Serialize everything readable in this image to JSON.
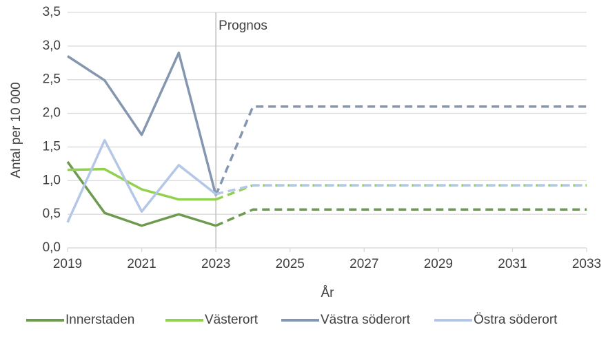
{
  "chart_data": {
    "type": "line",
    "y_label": "Antal per 10 000",
    "x_label": "År",
    "annotation": {
      "text": "Prognos",
      "x": 2023
    },
    "x": [
      2019,
      2020,
      2021,
      2022,
      2023,
      2024,
      2025,
      2026,
      2027,
      2028,
      2029,
      2030,
      2031,
      2032,
      2033
    ],
    "xlim": [
      2019,
      2033
    ],
    "xticks": [
      2019,
      2021,
      2023,
      2025,
      2027,
      2029,
      2031,
      2033
    ],
    "ylim": [
      0,
      3.5
    ],
    "yticks": [
      {
        "value": 0,
        "label": "0,0"
      },
      {
        "value": 0.5,
        "label": "0,5"
      },
      {
        "value": 1,
        "label": "1,0"
      },
      {
        "value": 1.5,
        "label": "1,5"
      },
      {
        "value": 2,
        "label": "2,0"
      },
      {
        "value": 2.5,
        "label": "2,5"
      },
      {
        "value": 3,
        "label": "3,0"
      },
      {
        "value": 3.5,
        "label": "3,5"
      }
    ],
    "grid": true,
    "legend": "bottom",
    "series": [
      {
        "name": "Innerstaden",
        "color": "#6e9a50",
        "values": [
          1.28,
          0.52,
          0.33,
          0.5,
          0.33,
          0.57,
          0.57,
          0.57,
          0.57,
          0.57,
          0.57,
          0.57,
          0.57,
          0.57,
          0.57
        ]
      },
      {
        "name": "Västerort",
        "color": "#92d050",
        "values": [
          1.16,
          1.17,
          0.87,
          0.72,
          0.72,
          0.93,
          0.93,
          0.93,
          0.93,
          0.93,
          0.93,
          0.93,
          0.93,
          0.93,
          0.93
        ]
      },
      {
        "name": "Västra söderort",
        "color": "#8496b0",
        "values": [
          2.85,
          2.49,
          1.68,
          2.9,
          0.78,
          2.1,
          2.1,
          2.1,
          2.1,
          2.1,
          2.1,
          2.1,
          2.1,
          2.1,
          2.1
        ]
      },
      {
        "name": "Östra söderort",
        "color": "#b4c7e7",
        "values": [
          0.38,
          1.6,
          0.54,
          1.23,
          0.8,
          0.93,
          0.93,
          0.93,
          0.93,
          0.93,
          0.93,
          0.93,
          0.93,
          0.93,
          0.93
        ]
      }
    ]
  }
}
